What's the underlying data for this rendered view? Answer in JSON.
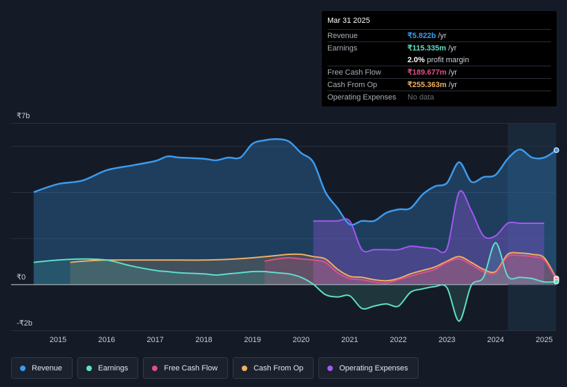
{
  "tooltip": {
    "date": "Mar 31 2025",
    "rows": {
      "revenue": {
        "label": "Revenue",
        "value": "₹5.822b",
        "unit": "/yr",
        "color": "#3b9bef"
      },
      "earnings": {
        "label": "Earnings",
        "value": "₹115.335m",
        "unit": "/yr",
        "color": "#5ee0c8"
      },
      "margin": {
        "value": "2.0%",
        "unit": "profit margin"
      },
      "fcf": {
        "label": "Free Cash Flow",
        "value": "₹189.677m",
        "unit": "/yr",
        "color": "#e0508a"
      },
      "cfo": {
        "label": "Cash From Op",
        "value": "₹255.363m",
        "unit": "/yr",
        "color": "#f0b060"
      },
      "opex": {
        "label": "Operating Expenses",
        "value": "No data",
        "color": "#6a707a"
      }
    }
  },
  "legend": [
    {
      "label": "Revenue",
      "color": "#3b9bef"
    },
    {
      "label": "Earnings",
      "color": "#5ee0c8"
    },
    {
      "label": "Free Cash Flow",
      "color": "#e0508a"
    },
    {
      "label": "Cash From Op",
      "color": "#f0b060"
    },
    {
      "label": "Operating Expenses",
      "color": "#a259f0"
    }
  ],
  "chart_data": {
    "type": "area",
    "unit": "₹ billions",
    "ylim": [
      -2,
      7
    ],
    "y_tick_labels": [
      {
        "value": 7,
        "label": "₹7b"
      },
      {
        "value": 0,
        "label": "₹0"
      },
      {
        "value": -2,
        "label": "-₹2b"
      }
    ],
    "x_ticks": [
      2015,
      2016,
      2017,
      2018,
      2019,
      2020,
      2021,
      2022,
      2023,
      2024,
      2025
    ],
    "xlim": [
      2014.5,
      2025.25
    ],
    "highlight_from": 2024.25,
    "series": [
      {
        "name": "Revenue",
        "color": "#3b9bef",
        "x": [
          2014.5,
          2015.0,
          2015.5,
          2016.0,
          2016.5,
          2017.0,
          2017.25,
          2017.5,
          2018.0,
          2018.25,
          2018.5,
          2018.75,
          2019.0,
          2019.25,
          2019.5,
          2019.75,
          2020.0,
          2020.25,
          2020.5,
          2020.75,
          2021.0,
          2021.25,
          2021.5,
          2021.75,
          2022.0,
          2022.25,
          2022.5,
          2022.75,
          2023.0,
          2023.25,
          2023.5,
          2023.75,
          2024.0,
          2024.25,
          2024.5,
          2024.75,
          2025.0,
          2025.25
        ],
        "values": [
          4.0,
          4.35,
          4.5,
          4.95,
          5.15,
          5.35,
          5.55,
          5.5,
          5.45,
          5.38,
          5.5,
          5.5,
          6.1,
          6.25,
          6.3,
          6.2,
          5.7,
          5.3,
          4.0,
          3.3,
          2.6,
          2.75,
          2.75,
          3.1,
          3.25,
          3.3,
          3.9,
          4.25,
          4.4,
          5.3,
          4.45,
          4.65,
          4.75,
          5.45,
          5.85,
          5.5,
          5.5,
          5.822
        ]
      },
      {
        "name": "Earnings",
        "color": "#5ee0c8",
        "x": [
          2014.5,
          2015.0,
          2015.5,
          2016.0,
          2016.5,
          2017.0,
          2017.25,
          2017.5,
          2018.0,
          2018.25,
          2018.5,
          2018.75,
          2019.0,
          2019.25,
          2019.5,
          2019.75,
          2020.0,
          2020.25,
          2020.5,
          2020.75,
          2021.0,
          2021.25,
          2021.5,
          2021.75,
          2022.0,
          2022.25,
          2022.5,
          2022.75,
          2023.0,
          2023.25,
          2023.5,
          2023.75,
          2024.0,
          2024.25,
          2024.5,
          2024.75,
          2025.0,
          2025.25
        ],
        "values": [
          0.95,
          1.05,
          1.1,
          1.05,
          0.8,
          0.6,
          0.55,
          0.5,
          0.45,
          0.4,
          0.45,
          0.5,
          0.55,
          0.55,
          0.5,
          0.45,
          0.3,
          0.0,
          -0.45,
          -0.55,
          -0.5,
          -1.05,
          -0.95,
          -0.85,
          -0.95,
          -0.35,
          -0.2,
          -0.1,
          -0.15,
          -1.6,
          -0.05,
          0.3,
          1.8,
          0.35,
          0.3,
          0.25,
          0.1,
          0.115
        ]
      },
      {
        "name": "Free Cash Flow",
        "color": "#e0508a",
        "x": [
          2019.25,
          2019.5,
          2019.75,
          2020.0,
          2020.25,
          2020.5,
          2020.75,
          2021.0,
          2021.25,
          2021.5,
          2021.75,
          2022.0,
          2022.25,
          2022.5,
          2022.75,
          2023.0,
          2023.25,
          2023.5,
          2023.75,
          2024.0,
          2024.25,
          2024.5,
          2024.75,
          2025.0,
          2025.25
        ],
        "values": [
          1.0,
          1.1,
          1.15,
          1.1,
          1.05,
          0.95,
          0.5,
          0.25,
          0.2,
          0.1,
          0.05,
          0.2,
          0.35,
          0.5,
          0.65,
          0.95,
          1.1,
          0.85,
          0.55,
          0.5,
          1.2,
          1.25,
          1.2,
          1.05,
          0.19
        ]
      },
      {
        "name": "Cash From Op",
        "color": "#f0b060",
        "x": [
          2015.25,
          2015.5,
          2016.0,
          2016.5,
          2017.0,
          2017.5,
          2018.0,
          2018.5,
          2019.0,
          2019.5,
          2019.75,
          2020.0,
          2020.25,
          2020.5,
          2020.75,
          2021.0,
          2021.25,
          2021.5,
          2021.75,
          2022.0,
          2022.25,
          2022.5,
          2022.75,
          2023.0,
          2023.25,
          2023.5,
          2023.75,
          2024.0,
          2024.25,
          2024.5,
          2024.75,
          2025.0,
          2025.25
        ],
        "values": [
          0.95,
          1.0,
          1.05,
          1.05,
          1.05,
          1.05,
          1.05,
          1.08,
          1.15,
          1.25,
          1.3,
          1.3,
          1.2,
          1.1,
          0.65,
          0.35,
          0.3,
          0.2,
          0.15,
          0.25,
          0.45,
          0.6,
          0.75,
          1.0,
          1.2,
          0.95,
          0.65,
          0.55,
          1.3,
          1.35,
          1.3,
          1.15,
          0.255
        ]
      },
      {
        "name": "Operating Expenses",
        "color": "#a259f0",
        "x": [
          2020.25,
          2020.5,
          2020.75,
          2021.0,
          2021.25,
          2021.5,
          2021.75,
          2022.0,
          2022.25,
          2022.5,
          2022.75,
          2023.0,
          2023.25,
          2023.5,
          2023.75,
          2024.0,
          2024.25,
          2024.5,
          2024.75,
          2025.0
        ],
        "values": [
          2.75,
          2.75,
          2.75,
          2.75,
          1.5,
          1.5,
          1.5,
          1.5,
          1.65,
          1.6,
          1.55,
          1.55,
          4.0,
          3.2,
          2.1,
          2.1,
          2.65,
          2.65,
          2.65,
          2.65
        ]
      }
    ]
  }
}
